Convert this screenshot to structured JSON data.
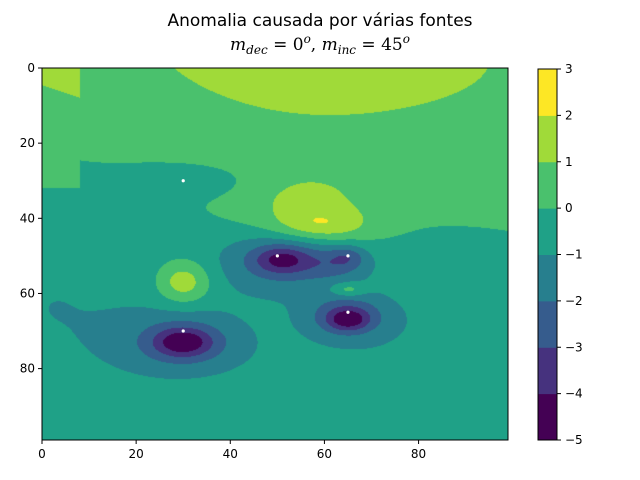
{
  "chart_data": {
    "type": "contourf",
    "title": "Anomalia causada por várias fontes",
    "subtitle": {
      "dec_symbol": "m",
      "dec_sub": "dec",
      "inc_symbol": "m",
      "inc_sub": "inc",
      "dec_value": "0",
      "inc_value": "45",
      "degree_mark": "o",
      "equals": " = ",
      "separator": ", "
    },
    "xlim": [
      0,
      99
    ],
    "ylim": [
      99,
      0
    ],
    "y_inverted": true,
    "x_ticks": [
      "0",
      "20",
      "40",
      "60",
      "80"
    ],
    "y_ticks": [
      "0",
      "20",
      "40",
      "60",
      "80"
    ],
    "colorbar": {
      "levels": [
        -5,
        -4,
        -3,
        -2,
        -1,
        0,
        1,
        2,
        3
      ],
      "tick_labels": [
        "−5",
        "−4",
        "−3",
        "−2",
        "−1",
        "0",
        "1",
        "2",
        "3"
      ],
      "colors": [
        "#440154",
        "#46327e",
        "#365c8d",
        "#277f8e",
        "#1fa187",
        "#4ac16d",
        "#a0da39",
        "#fde725"
      ]
    },
    "sources": [
      {
        "x": 30,
        "y": 30
      },
      {
        "x": 50,
        "y": 50
      },
      {
        "x": 65,
        "y": 50
      },
      {
        "x": 65,
        "y": 65
      },
      {
        "x": 30,
        "y": 70
      }
    ],
    "grid": false
  }
}
